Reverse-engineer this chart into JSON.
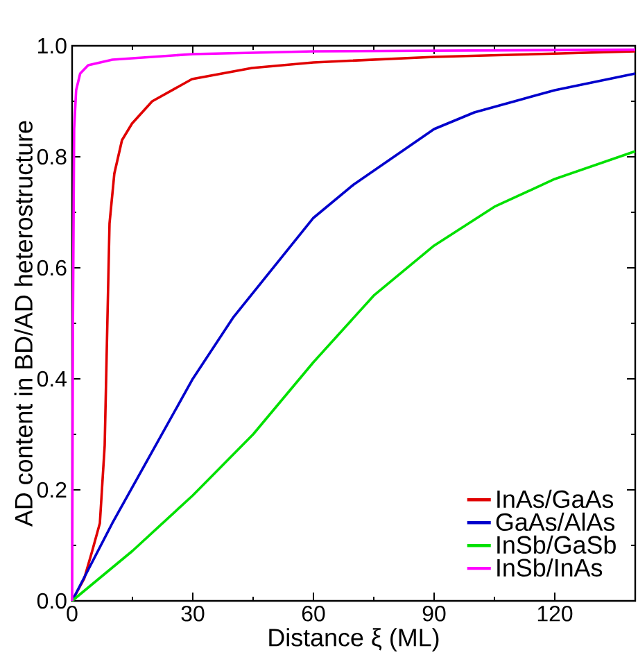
{
  "chart_data": {
    "type": "line",
    "xlabel": "Distance ξ (ML)",
    "ylabel": "AD content in BD/AD heterostructure",
    "xlim": [
      0,
      140
    ],
    "ylim": [
      0,
      1
    ],
    "xticks": [
      0,
      30,
      60,
      90,
      120
    ],
    "yticks": [
      {
        "value": 0,
        "label": "0.0"
      },
      {
        "value": 0.2,
        "label": "0.2"
      },
      {
        "value": 0.4,
        "label": "0.4"
      },
      {
        "value": 0.6,
        "label": "0.6"
      },
      {
        "value": 0.8,
        "label": "0.8"
      },
      {
        "value": 1,
        "label": "1.0"
      }
    ],
    "grid": false,
    "legend": "bottom right",
    "marker": "none",
    "line_style": "solid",
    "series": [
      {
        "name": "InAs/GaAs",
        "color": "#e00000",
        "x": [
          0,
          3,
          5,
          6.9,
          8.1,
          8.7,
          9.3,
          10.5,
          12.4,
          14.9,
          19.9,
          29.8,
          44.7,
          60,
          90,
          120,
          140
        ],
        "values": [
          0,
          0.04,
          0.09,
          0.14,
          0.28,
          0.48,
          0.68,
          0.77,
          0.83,
          0.86,
          0.9,
          0.94,
          0.96,
          0.97,
          0.98,
          0.986,
          0.99
        ]
      },
      {
        "name": "GaAs/AlAs",
        "color": "#0000cc",
        "x": [
          0,
          10,
          20,
          30,
          40,
          50,
          60,
          70,
          80,
          90,
          100,
          110,
          120,
          130,
          140
        ],
        "values": [
          0,
          0.14,
          0.27,
          0.4,
          0.51,
          0.6,
          0.69,
          0.75,
          0.8,
          0.85,
          0.88,
          0.9,
          0.92,
          0.935,
          0.95
        ]
      },
      {
        "name": "InSb/GaSb",
        "color": "#00e000",
        "x": [
          0,
          15,
          30,
          45,
          60,
          75,
          90,
          105,
          120,
          140
        ],
        "values": [
          0,
          0.09,
          0.19,
          0.3,
          0.43,
          0.55,
          0.64,
          0.71,
          0.76,
          0.81
        ]
      },
      {
        "name": "InSb/InAs",
        "color": "#ff00ff",
        "x": [
          0,
          0.2,
          0.5,
          1,
          2,
          4,
          10,
          30,
          60,
          140
        ],
        "values": [
          0,
          0.5,
          0.85,
          0.92,
          0.95,
          0.965,
          0.975,
          0.985,
          0.99,
          0.993
        ]
      }
    ]
  }
}
